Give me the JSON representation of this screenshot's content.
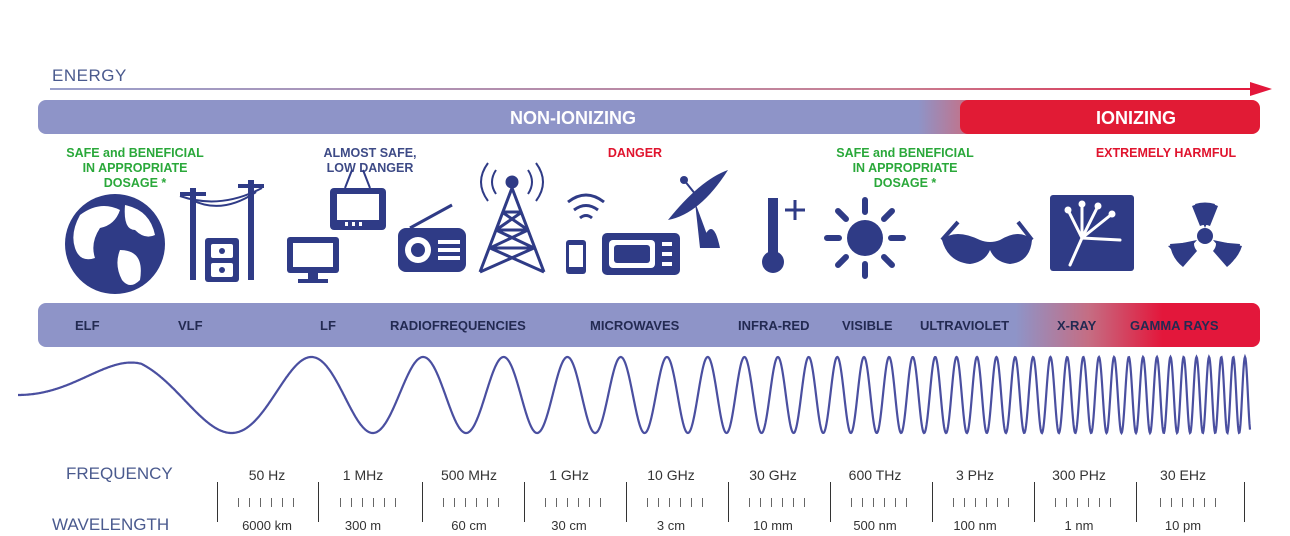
{
  "energy_label": "ENERGY",
  "bands": {
    "non_ionizing": "NON-IONIZING",
    "ionizing": "IONIZING"
  },
  "hazards": [
    {
      "text": "SAFE and BENEFICIAL\nIN APPROPRIATE\nDOSAGE *",
      "color": "#2aa83a"
    },
    {
      "text": "ALMOST SAFE,\nLOW DANGER",
      "color": "#3d4a86"
    },
    {
      "text": "DANGER",
      "color": "#e0142e"
    },
    {
      "text": "SAFE and BENEFICIAL\nIN APPROPRIATE\nDOSAGE *",
      "color": "#2aa83a"
    },
    {
      "text": "EXTREMELY HARMFUL",
      "color": "#e0142e"
    }
  ],
  "icons": [
    "globe-icon",
    "power-line-icon",
    "tv-icon",
    "monitor-icon",
    "radio-icon",
    "antenna-tower-icon",
    "wifi-icon",
    "phone-icon",
    "microwave-oven-icon",
    "satellite-dish-icon",
    "thermometer-icon",
    "sun-icon",
    "sunglasses-icon",
    "xray-hand-icon",
    "radiation-icon"
  ],
  "regions": [
    "ELF",
    "VLF",
    "LF",
    "RADIOFREQUENCIES",
    "MICROWAVES",
    "INFRA-RED",
    "VISIBLE",
    "ULTRAVIOLET",
    "X-RAY",
    "GAMMA RAYS"
  ],
  "frequency_title": "FREQUENCY",
  "wavelength_title": "WAVELENGTH",
  "scale": [
    {
      "frequency": "50 Hz",
      "wavelength": "6000 km"
    },
    {
      "frequency": "1 MHz",
      "wavelength": "300 m"
    },
    {
      "frequency": "500 MHz",
      "wavelength": "60 cm"
    },
    {
      "frequency": "1 GHz",
      "wavelength": "30 cm"
    },
    {
      "frequency": "10 GHz",
      "wavelength": "3 cm"
    },
    {
      "frequency": "30 GHz",
      "wavelength": "10 mm"
    },
    {
      "frequency": "600 THz",
      "wavelength": "500 nm"
    },
    {
      "frequency": "3 PHz",
      "wavelength": "100 nm"
    },
    {
      "frequency": "300 PHz",
      "wavelength": "1 nm"
    },
    {
      "frequency": "30 EHz",
      "wavelength": "10 pm"
    }
  ],
  "colors": {
    "band_blue": "#8e94c8",
    "band_red": "#e11b35",
    "icon_navy": "#2f3b86",
    "wave": "#4a4fa0"
  }
}
